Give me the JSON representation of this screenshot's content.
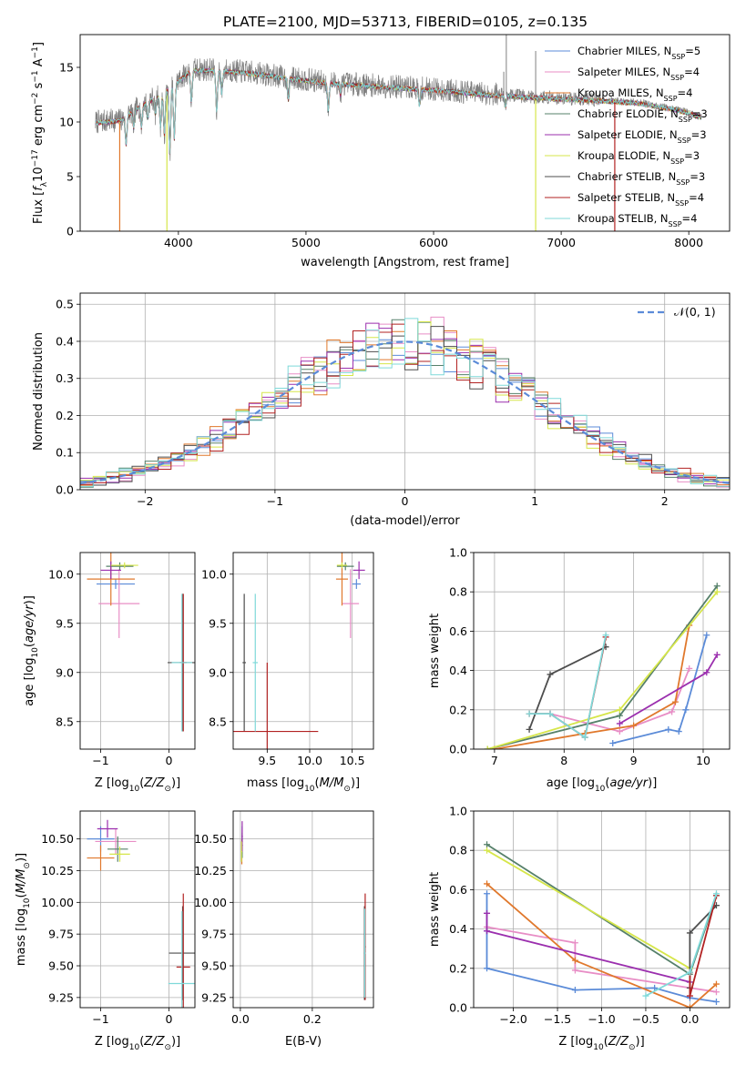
{
  "figure": {
    "title": "PLATE=2100, MJD=53713, FIBERID=0105, z=0.135"
  },
  "legend": [
    {
      "label": "Chabrier MILES, N_SSP=5",
      "base": "Chabrier MILES, N",
      "sub": "SSP",
      "tail": "=5",
      "color": "#5b8bd8"
    },
    {
      "label": "Salpeter MILES, N_SSP=4",
      "base": "Salpeter MILES, N",
      "sub": "SSP",
      "tail": "=4",
      "color": "#e88ec6"
    },
    {
      "label": "Kroupa MILES, N_SSP=4",
      "base": "Kroupa MILES, N",
      "sub": "SSP",
      "tail": "=4",
      "color": "#e0782c"
    },
    {
      "label": "Chabrier ELODIE, N_SSP=3",
      "base": "Chabrier ELODIE, N",
      "sub": "SSP",
      "tail": "=3",
      "color": "#56806a"
    },
    {
      "label": "Salpeter ELODIE, N_SSP=3",
      "base": "Salpeter ELODIE, N",
      "sub": "SSP",
      "tail": "=3",
      "color": "#9b2fae"
    },
    {
      "label": "Kroupa ELODIE, N_SSP=3",
      "base": "Kroupa ELODIE, N",
      "sub": "SSP",
      "tail": "=3",
      "color": "#d6e64a"
    },
    {
      "label": "Chabrier STELIB, N_SSP=3",
      "base": "Chabrier STELIB, N",
      "sub": "SSP",
      "tail": "=3",
      "color": "#4d4d4d"
    },
    {
      "label": "Salpeter STELIB, N_SSP=4",
      "base": "Salpeter STELIB, N",
      "sub": "SSP",
      "tail": "=4",
      "color": "#b22222"
    },
    {
      "label": "Kroupa STELIB, N_SSP=4",
      "base": "Kroupa STELIB, N",
      "sub": "SSP",
      "tail": "=4",
      "color": "#7fd9d9"
    }
  ],
  "chart_data": [
    {
      "id": "spectrum",
      "type": "line",
      "xlabel": "wavelength [Angstrom, rest frame]",
      "ylabel": "Flux [f_λ 10^-17 erg cm^-2 s^-1 A^-1]",
      "xlim": [
        3230,
        8320
      ],
      "ylim": [
        0,
        18
      ],
      "xticks": [
        4000,
        5000,
        6000,
        7000,
        8000
      ],
      "yticks": [
        0,
        5,
        10,
        15
      ],
      "grid": false,
      "legend_position": "upper right",
      "data_color": "#808080",
      "continuum_anchors": {
        "x": [
          3350,
          3550,
          3700,
          3850,
          4000,
          4100,
          4300,
          4600,
          4900,
          5200,
          5600,
          6000,
          6400,
          6800,
          7200,
          7600,
          7900,
          8100
        ],
        "y": [
          10.0,
          10.2,
          11.5,
          12.5,
          13.8,
          14.8,
          14.8,
          14.5,
          14.0,
          13.6,
          13.3,
          13.0,
          12.6,
          12.3,
          12.1,
          11.8,
          11.2,
          10.5
        ]
      },
      "absorption_features": [
        {
          "x": 3590,
          "depth": 2.5
        },
        {
          "x": 3650,
          "depth": 1.5
        },
        {
          "x": 3710,
          "depth": 2.0
        },
        {
          "x": 3760,
          "depth": 1.5
        },
        {
          "x": 3820,
          "depth": 1.5
        },
        {
          "x": 3860,
          "depth": 3.0
        },
        {
          "x": 3890,
          "depth": 4.0
        },
        {
          "x": 3933,
          "depth": 6.0
        },
        {
          "x": 3968,
          "depth": 5.0
        },
        {
          "x": 4102,
          "depth": 3.0
        },
        {
          "x": 4300,
          "depth": 4.0
        },
        {
          "x": 4340,
          "depth": 2.0
        },
        {
          "x": 4861,
          "depth": 2.0
        },
        {
          "x": 5175,
          "depth": 2.5
        },
        {
          "x": 5270,
          "depth": 1.0
        },
        {
          "x": 5890,
          "depth": 1.5
        },
        {
          "x": 6563,
          "depth": 1.0
        }
      ],
      "model_cutoffs": [
        {
          "series": "Kroupa MILES",
          "x": 3540
        },
        {
          "series": "Kroupa ELODIE",
          "x": 3910
        },
        {
          "series": "Kroupa ELODIE",
          "x": 6800
        },
        {
          "series": "Salpeter STELIB",
          "x": 7420
        }
      ]
    },
    {
      "id": "residuals",
      "type": "histogram",
      "xlabel": "(data-model)/error",
      "ylabel": "Normed distribution",
      "xlim": [
        -2.5,
        2.5
      ],
      "ylim": [
        0,
        0.53
      ],
      "xticks": [
        -2,
        -1,
        0,
        1,
        2
      ],
      "yticks": [
        0.0,
        0.1,
        0.2,
        0.3,
        0.4,
        0.5
      ],
      "grid": true,
      "bin_width": 0.1,
      "reference": {
        "label": "N(0,1)",
        "mean": 0,
        "sigma": 1,
        "color": "#5b8bd8"
      }
    },
    {
      "id": "age-vs-Z",
      "type": "scatter-errorbar",
      "xlabel": "Z [log10(Z/Z_sun)]",
      "ylabel": "age [log10(age/yr)]",
      "xlim": [
        -1.3,
        0.38
      ],
      "ylim": [
        8.22,
        10.22
      ],
      "xticks": [
        -1,
        0
      ],
      "yticks": [
        8.5,
        9.0,
        9.5,
        10.0
      ],
      "grid": true,
      "series": [
        {
          "name": "Chabrier MILES",
          "x": -0.78,
          "y": 9.9,
          "xerr": 0.28,
          "yerr": 0.05
        },
        {
          "name": "Salpeter MILES",
          "x": -0.73,
          "y": 9.7,
          "xerr": 0.3,
          "yerr": 0.35
        },
        {
          "name": "Kroupa MILES",
          "x": -0.85,
          "y": 9.95,
          "xerr": 0.35,
          "yerr": 0.27
        },
        {
          "name": "Chabrier ELODIE",
          "x": -0.72,
          "y": 10.08,
          "xerr": 0.2,
          "yerr": 0.04
        },
        {
          "name": "Salpeter ELODIE",
          "x": -0.85,
          "y": 10.04,
          "xerr": 0.15,
          "yerr": 0.09
        },
        {
          "name": "Kroupa ELODIE",
          "x": -0.65,
          "y": 10.09,
          "xerr": 0.2,
          "yerr": 0.03
        },
        {
          "name": "Chabrier STELIB",
          "x": 0.2,
          "y": 9.1,
          "xerr": 0.22,
          "yerr": 0.7
        },
        {
          "name": "Salpeter STELIB",
          "x": 0.21,
          "y": 9.1,
          "xerr": 0.05,
          "yerr": 0.7
        },
        {
          "name": "Kroupa STELIB",
          "x": 0.19,
          "y": 9.1,
          "xerr": 0.15,
          "yerr": 0.7
        }
      ]
    },
    {
      "id": "age-vs-mass",
      "type": "scatter-errorbar",
      "xlabel": "mass [log10(M/M_sun)]",
      "ylabel": "",
      "xlim": [
        9.1,
        10.75
      ],
      "ylim": [
        8.22,
        10.22
      ],
      "xticks": [
        9.5,
        10.0,
        10.5
      ],
      "yticks": [
        8.5,
        9.0,
        9.5,
        10.0
      ],
      "grid": true,
      "series": [
        {
          "name": "Chabrier MILES",
          "x": 10.55,
          "y": 9.9,
          "xerr": 0.05,
          "yerr": 0.05
        },
        {
          "name": "Salpeter MILES",
          "x": 10.48,
          "y": 9.7,
          "xerr": 0.1,
          "yerr": 0.35
        },
        {
          "name": "Kroupa MILES",
          "x": 10.38,
          "y": 9.95,
          "xerr": 0.07,
          "yerr": 0.27
        },
        {
          "name": "Chabrier ELODIE",
          "x": 10.42,
          "y": 10.08,
          "xerr": 0.1,
          "yerr": 0.04
        },
        {
          "name": "Salpeter ELODIE",
          "x": 10.58,
          "y": 10.04,
          "xerr": 0.07,
          "yerr": 0.09
        },
        {
          "name": "Kroupa ELODIE",
          "x": 10.38,
          "y": 10.09,
          "xerr": 0.06,
          "yerr": 0.03
        },
        {
          "name": "Chabrier STELIB",
          "x": 9.23,
          "y": 9.1,
          "xerr": 0.02,
          "yerr": 0.7
        },
        {
          "name": "Salpeter STELIB",
          "x": 9.5,
          "y": 8.4,
          "xerr": 0.6,
          "yerr": 0.7
        },
        {
          "name": "Kroupa STELIB",
          "x": 9.36,
          "y": 9.1,
          "xerr": 0.03,
          "yerr": 0.7
        }
      ]
    },
    {
      "id": "weight-vs-age",
      "type": "line",
      "xlabel": "age [log10(age/yr)]",
      "ylabel": "mass weight",
      "xlim": [
        6.7,
        10.38
      ],
      "ylim": [
        0,
        1.0
      ],
      "xticks": [
        7,
        8,
        9,
        10
      ],
      "yticks": [
        0.0,
        0.2,
        0.4,
        0.6,
        0.8,
        1.0
      ],
      "grid": true,
      "series": [
        {
          "name": "Chabrier MILES",
          "x": [
            8.7,
            9.5,
            9.65,
            9.75,
            10.05
          ],
          "y": [
            0.03,
            0.1,
            0.09,
            0.2,
            0.58
          ]
        },
        {
          "name": "Salpeter MILES",
          "x": [
            7.8,
            8.8,
            9.55,
            9.8
          ],
          "y": [
            0.18,
            0.09,
            0.19,
            0.41
          ]
        },
        {
          "name": "Kroupa MILES",
          "x": [
            7.0,
            8.3,
            9.0,
            9.6,
            9.8
          ],
          "y": [
            0.0,
            0.08,
            0.12,
            0.24,
            0.63
          ]
        },
        {
          "name": "Chabrier ELODIE",
          "x": [
            6.9,
            8.8,
            10.2
          ],
          "y": [
            0.0,
            0.17,
            0.83
          ]
        },
        {
          "name": "Salpeter ELODIE",
          "x": [
            8.8,
            10.05,
            10.2
          ],
          "y": [
            0.13,
            0.39,
            0.48
          ]
        },
        {
          "name": "Kroupa ELODIE",
          "x": [
            6.9,
            8.8,
            10.2
          ],
          "y": [
            0.0,
            0.2,
            0.8
          ]
        },
        {
          "name": "Chabrier STELIB",
          "x": [
            7.5,
            7.8,
            8.6
          ],
          "y": [
            0.1,
            0.38,
            0.52
          ]
        },
        {
          "name": "Salpeter STELIB",
          "x": [
            7.5,
            7.8,
            8.3,
            8.6
          ],
          "y": [
            0.18,
            0.18,
            0.06,
            0.57
          ]
        },
        {
          "name": "Kroupa STELIB",
          "x": [
            7.5,
            7.8,
            8.3,
            8.6
          ],
          "y": [
            0.18,
            0.18,
            0.06,
            0.58
          ]
        }
      ]
    },
    {
      "id": "mass-vs-Z",
      "type": "scatter-errorbar",
      "xlabel": "Z [log10(Z/Z_sun)]",
      "ylabel": "mass [log10(M/M_sun)]",
      "xlim": [
        -1.3,
        0.38
      ],
      "ylim": [
        9.17,
        10.72
      ],
      "xticks": [
        -1,
        0
      ],
      "yticks": [
        9.25,
        9.5,
        9.75,
        10.0,
        10.25,
        10.5
      ],
      "grid": true,
      "series": [
        {
          "name": "Chabrier MILES",
          "x": -1.0,
          "y": 10.5,
          "xerr": 0.2,
          "yerr": 0.1
        },
        {
          "name": "Salpeter MILES",
          "x": -0.78,
          "y": 10.48,
          "xerr": 0.3,
          "yerr": 0.1
        },
        {
          "name": "Kroupa MILES",
          "x": -1.0,
          "y": 10.35,
          "xerr": 0.2,
          "yerr": 0.1
        },
        {
          "name": "Chabrier ELODIE",
          "x": -0.75,
          "y": 10.42,
          "xerr": 0.15,
          "yerr": 0.1
        },
        {
          "name": "Salpeter ELODIE",
          "x": -0.9,
          "y": 10.58,
          "xerr": 0.15,
          "yerr": 0.07
        },
        {
          "name": "Kroupa ELODIE",
          "x": -0.72,
          "y": 10.38,
          "xerr": 0.15,
          "yerr": 0.06
        },
        {
          "name": "Chabrier STELIB",
          "x": 0.2,
          "y": 9.6,
          "xerr": 0.2,
          "yerr": 0.37
        },
        {
          "name": "Salpeter STELIB",
          "x": 0.21,
          "y": 9.49,
          "xerr": 0.1,
          "yerr": 0.58
        },
        {
          "name": "Kroupa STELIB",
          "x": 0.19,
          "y": 9.36,
          "xerr": 0.2,
          "yerr": 0.57
        }
      ]
    },
    {
      "id": "mass-vs-ebv",
      "type": "scatter-errorbar",
      "xlabel": "E(B-V)",
      "ylabel": "",
      "xlim": [
        -0.02,
        0.37
      ],
      "ylim": [
        9.17,
        10.72
      ],
      "xticks": [
        0.0,
        0.2
      ],
      "yticks": [
        9.25,
        9.5,
        9.75,
        10.0,
        10.25,
        10.5
      ],
      "grid": true,
      "series": [
        {
          "name": "Chabrier MILES",
          "x": 0.005,
          "y": 10.5,
          "xerr": 0.002,
          "yerr": 0.1
        },
        {
          "name": "Salpeter MILES",
          "x": 0.005,
          "y": 10.48,
          "xerr": 0.002,
          "yerr": 0.1
        },
        {
          "name": "Kroupa MILES",
          "x": 0.004,
          "y": 10.4,
          "xerr": 0.002,
          "yerr": 0.1
        },
        {
          "name": "Chabrier ELODIE",
          "x": 0.005,
          "y": 10.45,
          "xerr": 0.002,
          "yerr": 0.1
        },
        {
          "name": "Salpeter ELODIE",
          "x": 0.005,
          "y": 10.52,
          "xerr": 0.002,
          "yerr": 0.12
        },
        {
          "name": "Kroupa ELODIE",
          "x": 0.003,
          "y": 10.4,
          "xerr": 0.002,
          "yerr": 0.08
        },
        {
          "name": "Chabrier STELIB",
          "x": 0.345,
          "y": 9.6,
          "xerr": 0.002,
          "yerr": 0.37
        },
        {
          "name": "Salpeter STELIB",
          "x": 0.347,
          "y": 9.65,
          "xerr": 0.002,
          "yerr": 0.42
        },
        {
          "name": "Kroupa STELIB",
          "x": 0.346,
          "y": 9.6,
          "xerr": 0.002,
          "yerr": 0.35
        }
      ]
    },
    {
      "id": "weight-vs-Z",
      "type": "line",
      "xlabel": "Z [log10(Z/Z_sun)]",
      "ylabel": "mass weight",
      "xlim": [
        -2.45,
        0.45
      ],
      "ylim": [
        0,
        1.0
      ],
      "xticks": [
        -2.0,
        -1.5,
        -1.0,
        -0.5,
        0.0
      ],
      "yticks": [
        0.0,
        0.2,
        0.4,
        0.6,
        0.8,
        1.0
      ],
      "grid": true,
      "series": [
        {
          "name": "Chabrier MILES",
          "x": [
            -2.3,
            -2.3,
            -2.3,
            -1.3,
            -0.4,
            0.0,
            0.3
          ],
          "y": [
            0.58,
            0.39,
            0.2,
            0.09,
            0.1,
            0.05,
            0.03
          ]
        },
        {
          "name": "Salpeter MILES",
          "x": [
            -2.3,
            -1.3,
            -1.3,
            0.3
          ],
          "y": [
            0.41,
            0.33,
            0.19,
            0.08
          ]
        },
        {
          "name": "Kroupa MILES",
          "x": [
            -2.3,
            -1.3,
            0.0,
            0.3
          ],
          "y": [
            0.63,
            0.24,
            0.0,
            0.12
          ]
        },
        {
          "name": "Chabrier ELODIE",
          "x": [
            -2.3,
            0.0,
            0.3
          ],
          "y": [
            0.83,
            0.17,
            0.57
          ]
        },
        {
          "name": "Salpeter ELODIE",
          "x": [
            -2.3,
            -2.3,
            0.0
          ],
          "y": [
            0.48,
            0.39,
            0.13
          ]
        },
        {
          "name": "Kroupa ELODIE",
          "x": [
            -2.3,
            0.0
          ],
          "y": [
            0.8,
            0.2
          ]
        },
        {
          "name": "Chabrier STELIB",
          "x": [
            0.0,
            0.0,
            0.3
          ],
          "y": [
            0.1,
            0.38,
            0.52
          ]
        },
        {
          "name": "Salpeter STELIB",
          "x": [
            0.0,
            0.0,
            0.3
          ],
          "y": [
            0.18,
            0.06,
            0.57
          ]
        },
        {
          "name": "Kroupa STELIB",
          "x": [
            -0.5,
            0.0,
            0.3
          ],
          "y": [
            0.06,
            0.18,
            0.58
          ]
        }
      ]
    }
  ]
}
